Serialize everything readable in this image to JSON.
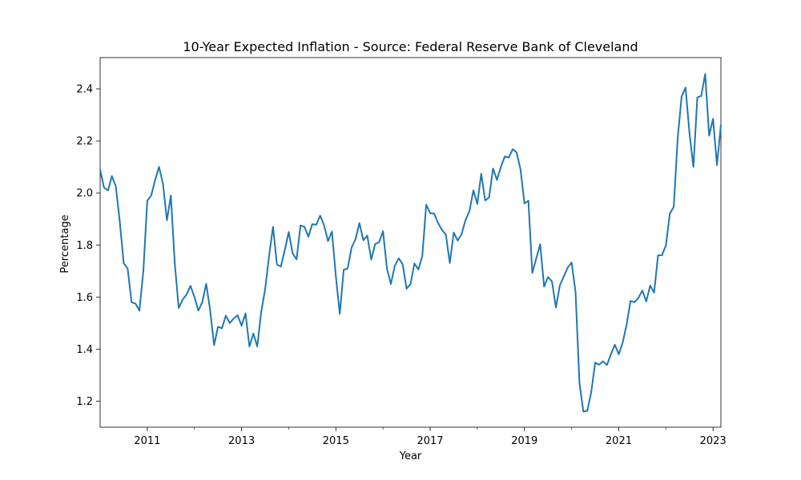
{
  "chart_data": {
    "type": "line",
    "title": "10-Year Expected Inflation - Source: Federal Reserve Bank of Cleveland",
    "xlabel": "Year",
    "ylabel": "Percentage",
    "xlim": [
      "2010-01-01",
      "2023-03-01"
    ],
    "ylim": [
      1.1,
      2.52
    ],
    "x_ticks_major": [
      "2011",
      "2013",
      "2015",
      "2017",
      "2019",
      "2021",
      "2023"
    ],
    "x_ticks_minor": [
      "2012",
      "2014",
      "2016",
      "2018",
      "2020",
      "2022"
    ],
    "y_ticks": [
      "1.2",
      "1.4",
      "1.6",
      "1.8",
      "2.0",
      "2.2",
      "2.4"
    ],
    "grid": false,
    "line_color": "#1f77b4",
    "series": [
      {
        "x": [
          "2010-01",
          "2010-02",
          "2010-03",
          "2010-04",
          "2010-05",
          "2010-06",
          "2010-07",
          "2010-08",
          "2010-09",
          "2010-10",
          "2010-11",
          "2010-12",
          "2011-01",
          "2011-02",
          "2011-03",
          "2011-04",
          "2011-05",
          "2011-06",
          "2011-07",
          "2011-08",
          "2011-09",
          "2011-10",
          "2011-11",
          "2011-12",
          "2012-01",
          "2012-02",
          "2012-03",
          "2012-04",
          "2012-05",
          "2012-06",
          "2012-07",
          "2012-08",
          "2012-09",
          "2012-10",
          "2012-11",
          "2012-12",
          "2013-01",
          "2013-02",
          "2013-03",
          "2013-04",
          "2013-05",
          "2013-06",
          "2013-07",
          "2013-08",
          "2013-09",
          "2013-10",
          "2013-11",
          "2013-12",
          "2014-01",
          "2014-02",
          "2014-03",
          "2014-04",
          "2014-05",
          "2014-06",
          "2014-07",
          "2014-08",
          "2014-09",
          "2014-10",
          "2014-11",
          "2014-12",
          "2015-01",
          "2015-02",
          "2015-03",
          "2015-04",
          "2015-05",
          "2015-06",
          "2015-07",
          "2015-08",
          "2015-09",
          "2015-10",
          "2015-11",
          "2015-12",
          "2016-01",
          "2016-02",
          "2016-03",
          "2016-04",
          "2016-05",
          "2016-06",
          "2016-07",
          "2016-08",
          "2016-09",
          "2016-10",
          "2016-11",
          "2016-12",
          "2017-01",
          "2017-02",
          "2017-03",
          "2017-04",
          "2017-05",
          "2017-06",
          "2017-07",
          "2017-08",
          "2017-09",
          "2017-10",
          "2017-11",
          "2017-12",
          "2018-01",
          "2018-02",
          "2018-03",
          "2018-04",
          "2018-05",
          "2018-06",
          "2018-07",
          "2018-08",
          "2018-09",
          "2018-10",
          "2018-11",
          "2018-12",
          "2019-01",
          "2019-02",
          "2019-03",
          "2019-04",
          "2019-05",
          "2019-06",
          "2019-07",
          "2019-08",
          "2019-09",
          "2019-10",
          "2019-11",
          "2019-12",
          "2020-01",
          "2020-02",
          "2020-03",
          "2020-04",
          "2020-05",
          "2020-06",
          "2020-07",
          "2020-08",
          "2020-09",
          "2020-10",
          "2020-11",
          "2020-12",
          "2021-01",
          "2021-02",
          "2021-03",
          "2021-04",
          "2021-05",
          "2021-06",
          "2021-07",
          "2021-08",
          "2021-09",
          "2021-10",
          "2021-11",
          "2021-12",
          "2022-01",
          "2022-02",
          "2022-03",
          "2022-04",
          "2022-05",
          "2022-06",
          "2022-07",
          "2022-08",
          "2022-09",
          "2022-10",
          "2022-11",
          "2022-12",
          "2023-01",
          "2023-02",
          "2023-03"
        ],
        "y": [
          2.09,
          2.02,
          2.01,
          2.065,
          2.025,
          1.89,
          1.73,
          1.71,
          1.58,
          1.575,
          1.548,
          1.7,
          1.97,
          1.99,
          2.05,
          2.1,
          2.035,
          1.895,
          1.99,
          1.73,
          1.558,
          1.59,
          1.61,
          1.643,
          1.6,
          1.548,
          1.58,
          1.651,
          1.55,
          1.415,
          1.486,
          1.48,
          1.529,
          1.5,
          1.518,
          1.53,
          1.49,
          1.537,
          1.41,
          1.46,
          1.41,
          1.543,
          1.63,
          1.757,
          1.87,
          1.725,
          1.717,
          1.78,
          1.85,
          1.768,
          1.745,
          1.875,
          1.87,
          1.832,
          1.88,
          1.878,
          1.913,
          1.876,
          1.815,
          1.852,
          1.68,
          1.535,
          1.705,
          1.71,
          1.79,
          1.822,
          1.884,
          1.818,
          1.836,
          1.744,
          1.804,
          1.81,
          1.853,
          1.71,
          1.65,
          1.72,
          1.749,
          1.726,
          1.632,
          1.65,
          1.729,
          1.706,
          1.757,
          1.955,
          1.922,
          1.921,
          1.885,
          1.858,
          1.84,
          1.731,
          1.848,
          1.817,
          1.842,
          1.896,
          1.93,
          2.01,
          1.958,
          2.074,
          1.971,
          1.983,
          2.094,
          2.05,
          2.1,
          2.14,
          2.136,
          2.168,
          2.156,
          2.09,
          1.96,
          1.97,
          1.693,
          1.748,
          1.803,
          1.64,
          1.677,
          1.66,
          1.56,
          1.644,
          1.679,
          1.713,
          1.733,
          1.62,
          1.27,
          1.16,
          1.163,
          1.235,
          1.348,
          1.34,
          1.353,
          1.339,
          1.38,
          1.417,
          1.38,
          1.425,
          1.494,
          1.585,
          1.58,
          1.597,
          1.625,
          1.583,
          1.644,
          1.617,
          1.76,
          1.761,
          1.798,
          1.92,
          1.947,
          2.21,
          2.37,
          2.405,
          2.23,
          2.1,
          2.367,
          2.373,
          2.457,
          2.22,
          2.285,
          2.107,
          2.262
        ]
      }
    ]
  }
}
